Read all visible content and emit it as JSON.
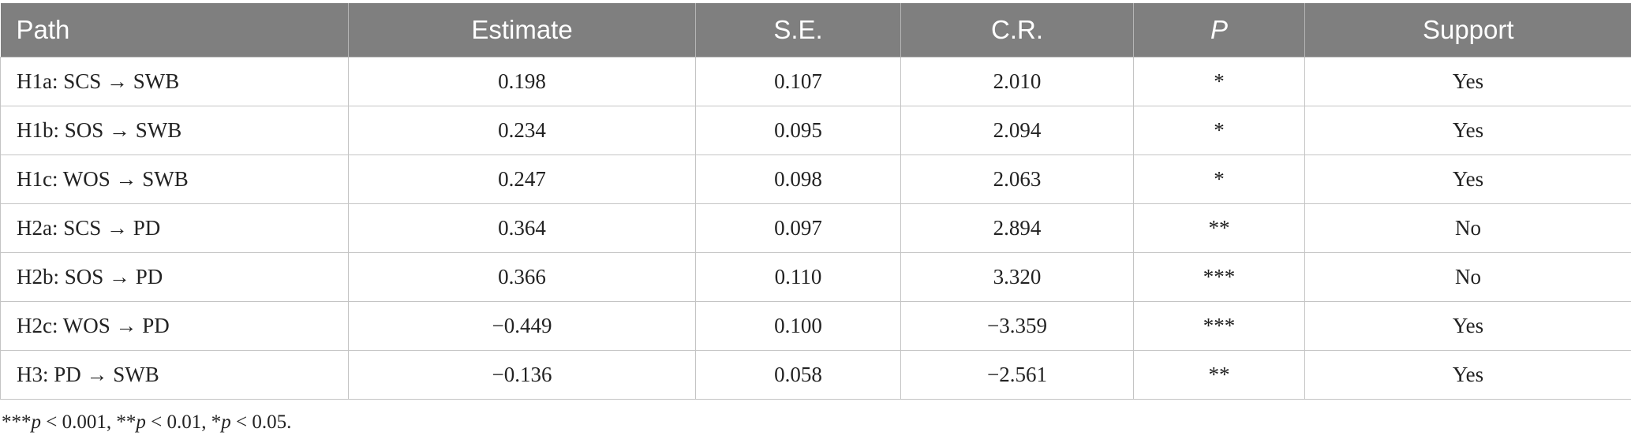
{
  "table": {
    "headers": [
      "Path",
      "Estimate",
      "S.E.",
      "C.R.",
      "P",
      "Support"
    ],
    "rows": [
      {
        "path": "H1a: SCS → SWB",
        "estimate": "0.198",
        "se": "0.107",
        "cr": "2.010",
        "p": "*",
        "support": "Yes"
      },
      {
        "path": "H1b: SOS → SWB",
        "estimate": "0.234",
        "se": "0.095",
        "cr": "2.094",
        "p": "*",
        "support": "Yes"
      },
      {
        "path": "H1c: WOS → SWB",
        "estimate": "0.247",
        "se": "0.098",
        "cr": "2.063",
        "p": "*",
        "support": "Yes"
      },
      {
        "path": "H2a: SCS → PD",
        "estimate": "0.364",
        "se": "0.097",
        "cr": "2.894",
        "p": "**",
        "support": "No"
      },
      {
        "path": "H2b: SOS → PD",
        "estimate": "0.366",
        "se": "0.110",
        "cr": "3.320",
        "p": "***",
        "support": "No"
      },
      {
        "path": "H2c: WOS → PD",
        "estimate": "−0.449",
        "se": "0.100",
        "cr": "−3.359",
        "p": "***",
        "support": "Yes"
      },
      {
        "path": "H3: PD → SWB",
        "estimate": "−0.136",
        "se": "0.058",
        "cr": "−2.561",
        "p": "**",
        "support": "Yes"
      }
    ]
  },
  "footnote": {
    "parts": [
      {
        "text": "***",
        "italic": false
      },
      {
        "text": "p",
        "italic": true
      },
      {
        "text": " < 0.001, **",
        "italic": false
      },
      {
        "text": "p",
        "italic": true
      },
      {
        "text": " < 0.01, *",
        "italic": false
      },
      {
        "text": "p",
        "italic": true
      },
      {
        "text": " < 0.05.",
        "italic": false
      }
    ]
  },
  "colors": {
    "header_bg": "#7f7f7f",
    "header_text": "#ffffff",
    "grid": "#c4c4c4",
    "body_text": "#222222"
  }
}
